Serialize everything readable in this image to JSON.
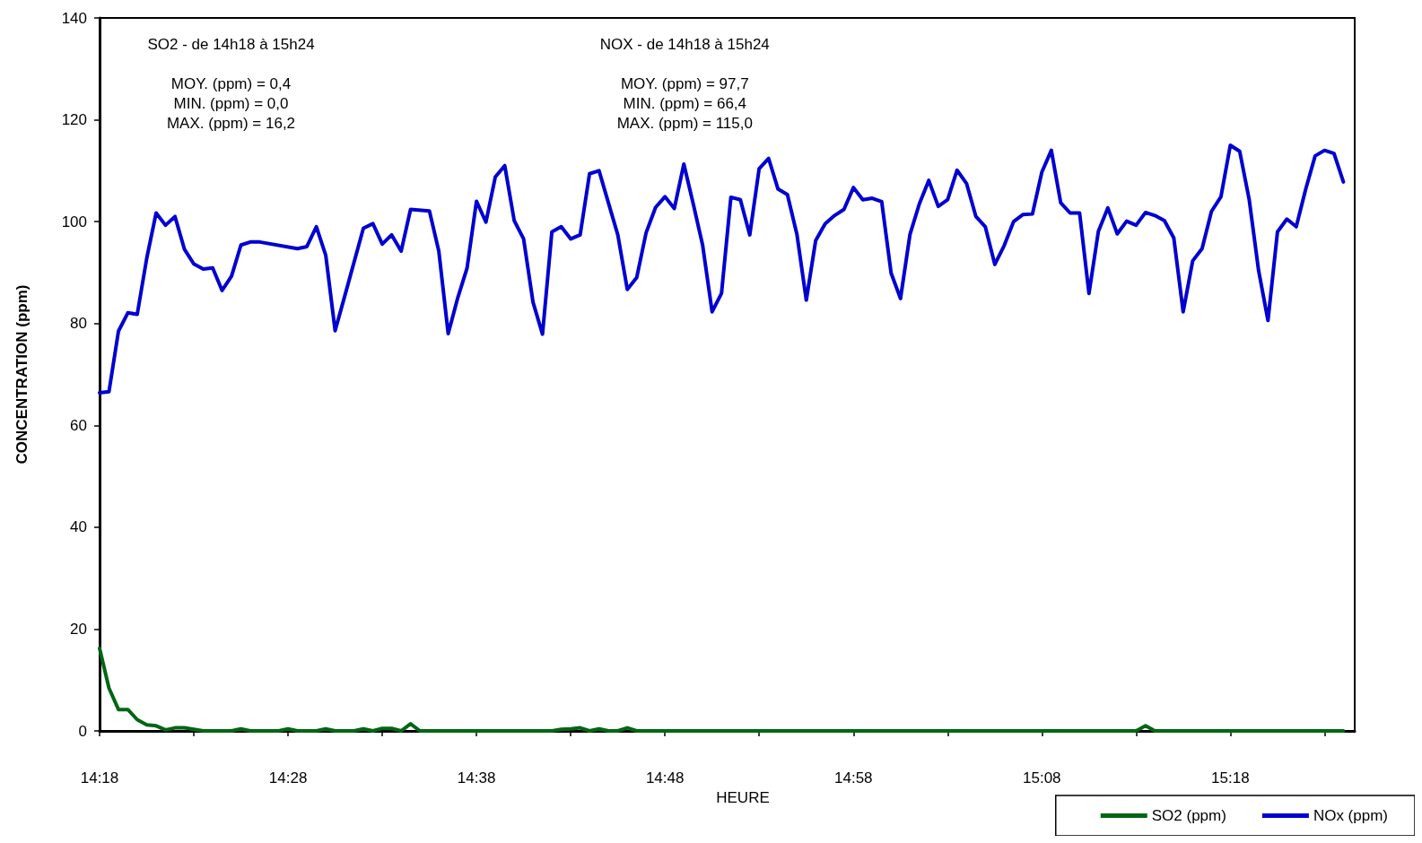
{
  "chart_data": {
    "type": "line",
    "xlabel": "HEURE",
    "ylabel": "CONCENTRATION (ppm)",
    "annotations": [
      "SO2 - de 14h18 à 15h24\n\nMOY. (ppm) = 0,4\nMIN. (ppm) = 0,0\nMAX. (ppm) = 16,2",
      "NOX - de 14h18 à 15h24\n\nMOY. (ppm) = 97,7\nMIN. (ppm) = 66,4\nMAX. (ppm) = 115,0"
    ],
    "xlim": [
      14.3,
      15.41
    ],
    "ylim": [
      0,
      140
    ],
    "xticks": [
      {
        "value": 14.3,
        "label": "14:18"
      },
      {
        "value": 14.3833,
        "label": null
      },
      {
        "value": 14.4667,
        "label": "14:28"
      },
      {
        "value": 14.55,
        "label": null
      },
      {
        "value": 14.6333,
        "label": "14:38"
      },
      {
        "value": 14.7167,
        "label": null
      },
      {
        "value": 14.8,
        "label": "14:48"
      },
      {
        "value": 14.8833,
        "label": null
      },
      {
        "value": 14.9667,
        "label": "14:58"
      },
      {
        "value": 15.05,
        "label": null
      },
      {
        "value": 15.1333,
        "label": "15:08"
      },
      {
        "value": 15.2167,
        "label": null
      },
      {
        "value": 15.3,
        "label": "15:18"
      },
      {
        "value": 15.3833,
        "label": null
      }
    ],
    "yticks": [
      0,
      20,
      40,
      60,
      80,
      100,
      120,
      140
    ],
    "legend": "bottom right",
    "line_style": "solid",
    "series": [
      {
        "name": "SO2 (ppm)",
        "color": "#006614",
        "x": [
          14.3,
          14.3083,
          14.3167,
          14.325,
          14.3333,
          14.3417,
          14.35,
          14.3583,
          14.3667,
          14.375,
          14.3917,
          14.4167,
          14.425,
          14.4333,
          14.4583,
          14.4667,
          14.475,
          14.4917,
          14.5,
          14.5083,
          14.525,
          14.5333,
          14.5417,
          14.55,
          14.5583,
          14.5667,
          14.575,
          14.5833,
          14.7,
          14.7083,
          14.7167,
          14.725,
          14.7333,
          14.7417,
          14.75,
          14.7583,
          14.7667,
          14.775,
          15.2167,
          15.225,
          15.2333,
          15.4
        ],
        "values": [
          16.2,
          8.4,
          4.2,
          4.2,
          2.2,
          1.2,
          1.0,
          0.2,
          0.6,
          0.6,
          0.0,
          0.0,
          0.4,
          0.0,
          0.0,
          0.4,
          0.0,
          0.0,
          0.4,
          0.0,
          0.0,
          0.4,
          0.0,
          0.5,
          0.5,
          0.0,
          1.4,
          0.0,
          0.0,
          0.3,
          0.4,
          0.6,
          0.0,
          0.4,
          0.0,
          0.0,
          0.6,
          0.0,
          0.0,
          1.0,
          0.0,
          0.0
        ]
      },
      {
        "name": "NOx (ppm)",
        "color": "#0000d0",
        "x": [
          14.3,
          14.3083,
          14.3167,
          14.325,
          14.3333,
          14.3417,
          14.35,
          14.3583,
          14.3667,
          14.375,
          14.3833,
          14.3917,
          14.4,
          14.4083,
          14.4167,
          14.425,
          14.4333,
          14.4417,
          14.475,
          14.4833,
          14.4917,
          14.5,
          14.5083,
          14.5167,
          14.5333,
          14.5417,
          14.55,
          14.5583,
          14.5667,
          14.575,
          14.5917,
          14.6,
          14.6083,
          14.6167,
          14.625,
          14.6333,
          14.6417,
          14.65,
          14.6583,
          14.6667,
          14.675,
          14.6833,
          14.6917,
          14.7,
          14.7083,
          14.7167,
          14.725,
          14.7333,
          14.7417,
          14.7583,
          14.7667,
          14.775,
          14.7833,
          14.7917,
          14.8,
          14.8083,
          14.8167,
          14.825,
          14.8333,
          14.8417,
          14.85,
          14.8583,
          14.8667,
          14.875,
          14.8833,
          14.8917,
          14.9,
          14.9083,
          14.9167,
          14.925,
          14.9333,
          14.9417,
          14.95,
          14.9583,
          14.9667,
          14.975,
          14.9833,
          14.9917,
          15,
          15.0083,
          15.0167,
          15.025,
          15.0333,
          15.0417,
          15.05,
          15.0583,
          15.0667,
          15.075,
          15.0833,
          15.0917,
          15.1,
          15.1083,
          15.1167,
          15.125,
          15.1333,
          15.1417,
          15.15,
          15.1583,
          15.1667,
          15.175,
          15.1833,
          15.1917,
          15.2,
          15.2083,
          15.2167,
          15.225,
          15.2333,
          15.2417,
          15.25,
          15.2583,
          15.2667,
          15.275,
          15.2833,
          15.2917,
          15.3,
          15.3083,
          15.3167,
          15.325,
          15.3333,
          15.3417,
          15.35,
          15.3583,
          15.3667,
          15.375,
          15.3833,
          15.3917,
          15.4
        ],
        "values": [
          66.4,
          66.6,
          78.5,
          82.1,
          81.8,
          92.8,
          101.7,
          99.3,
          101.0,
          94.6,
          91.7,
          90.7,
          90.9,
          86.5,
          89.3,
          95.4,
          96.0,
          96.0,
          94.7,
          95.1,
          99.0,
          93.4,
          78.6,
          85.3,
          98.7,
          99.6,
          95.6,
          97.4,
          94.2,
          102.4,
          102.1,
          94.2,
          78.0,
          85.0,
          90.9,
          104.0,
          99.9,
          108.8,
          111.0,
          100.2,
          96.6,
          84.2,
          77.9,
          98.0,
          99.0,
          96.6,
          97.4,
          109.4,
          110.0,
          97.4,
          86.7,
          89.0,
          97.8,
          102.8,
          104.9,
          102.6,
          111.3,
          103.5,
          95.4,
          82.3,
          85.9,
          104.8,
          104.3,
          97.4,
          110.4,
          112.4,
          106.4,
          105.3,
          97.5,
          84.6,
          96.3,
          99.6,
          101.2,
          102.4,
          106.7,
          104.3,
          104.6,
          103.9,
          89.9,
          84.9,
          97.5,
          103.5,
          108.1,
          103.0,
          104.3,
          110.1,
          107.5,
          101.0,
          99.0,
          91.6,
          95.3,
          100.0,
          101.4,
          101.5,
          109.7,
          114.0,
          103.7,
          101.7,
          101.7,
          85.9,
          98.1,
          102.7,
          97.6,
          100.1,
          99.3,
          101.8,
          101.2,
          100.2,
          96.8,
          82.3,
          92.3,
          94.7,
          102.0,
          104.9,
          115.0,
          113.8,
          104.3,
          90.4,
          80.6,
          98.0,
          100.5,
          99.0,
          106.4,
          112.9,
          114.0,
          113.4,
          107.8
        ]
      }
    ]
  }
}
